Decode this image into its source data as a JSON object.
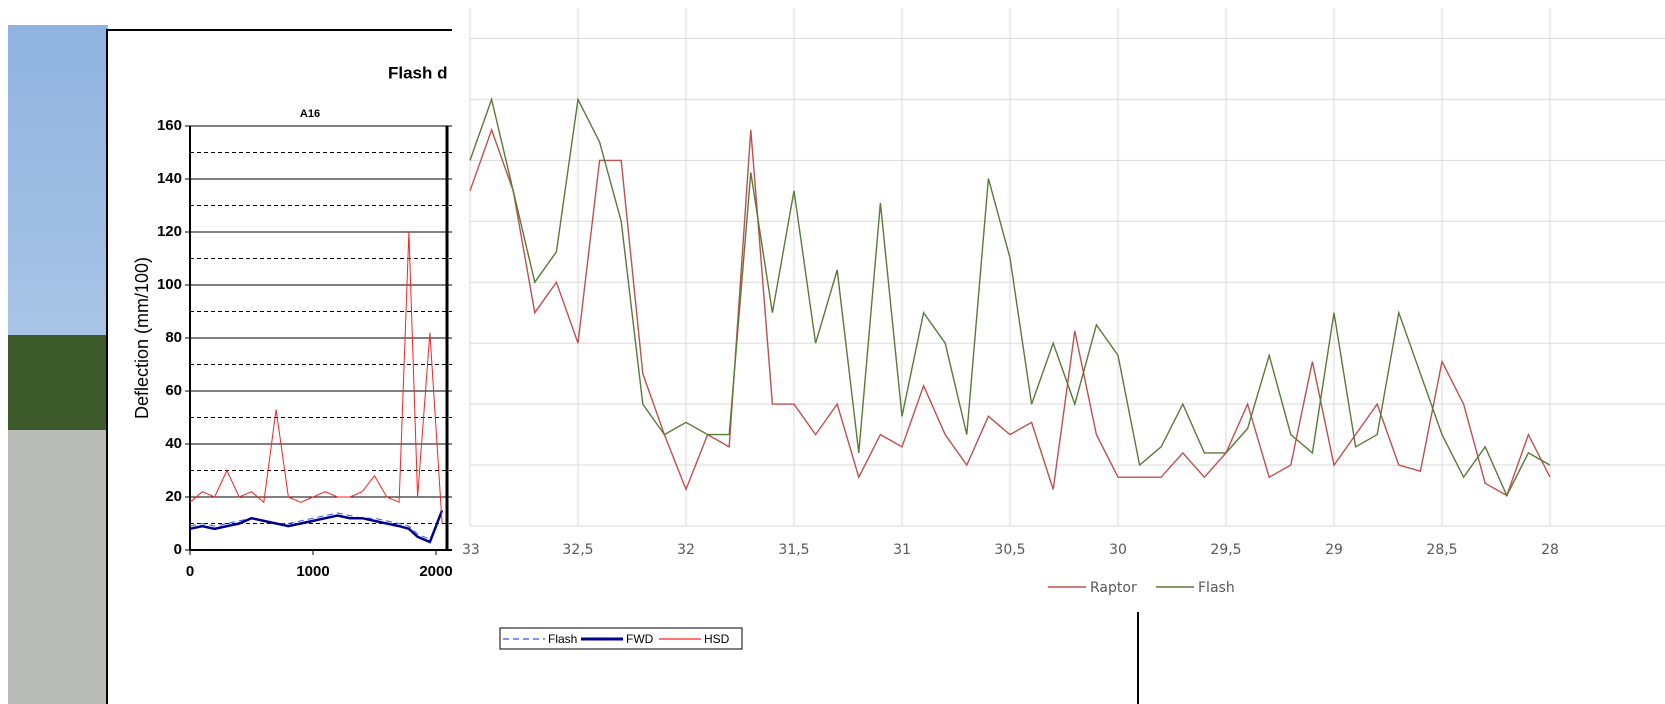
{
  "chart_data": [
    {
      "type": "line",
      "title": "Flash d",
      "subtitle": "A16",
      "y_label": "Deflection (mm/100)",
      "xlim": [
        0,
        3000
      ],
      "xticks": [
        0,
        1000,
        2000
      ],
      "ylim": [
        0,
        160
      ],
      "yticks": [
        0,
        20,
        40,
        60,
        80,
        100,
        120,
        140,
        160
      ],
      "y_minor_grid": [
        10,
        30,
        50,
        70,
        90,
        110,
        130,
        150
      ],
      "x": [
        0,
        100,
        200,
        300,
        400,
        500,
        600,
        700,
        800,
        900,
        1000,
        1100,
        1200,
        1300,
        1400,
        1500,
        1600,
        1700,
        1780,
        1850,
        1950,
        2050
      ],
      "series": [
        {
          "name": "Flash",
          "color": "#3355ff",
          "dash": true,
          "values": [
            9,
            10,
            9,
            10,
            11,
            12,
            11,
            10,
            10,
            11,
            12,
            13,
            14,
            13,
            12,
            12,
            11,
            10,
            9,
            6,
            4,
            14
          ]
        },
        {
          "name": "FWD",
          "color": "#00008b",
          "dash": false,
          "values": [
            8,
            9,
            8,
            9,
            10,
            12,
            11,
            10,
            9,
            10,
            11,
            12,
            13,
            12,
            12,
            11,
            10,
            9,
            8,
            5,
            3,
            15
          ]
        },
        {
          "name": "HSD",
          "color": "#ff2020",
          "dash": false,
          "values": [
            18,
            22,
            20,
            30,
            20,
            22,
            18,
            53,
            20,
            18,
            20,
            22,
            20,
            20,
            22,
            28,
            20,
            18,
            120,
            20,
            82,
            10
          ]
        }
      ]
    },
    {
      "type": "line",
      "xlim": [
        33,
        28
      ],
      "ylim": [
        0,
        8.5
      ],
      "y_grid": [
        1,
        2,
        3,
        4,
        5,
        6,
        7,
        8
      ],
      "xticks": [
        33,
        {
          "value": 32.5,
          "label": "32,5"
        },
        32,
        {
          "value": 31.5,
          "label": "31,5"
        },
        31,
        {
          "value": 30.5,
          "label": "30,5"
        },
        30,
        {
          "value": 29.5,
          "label": "29,5"
        },
        29,
        {
          "value": 28.5,
          "label": "28,5"
        },
        28
      ],
      "x": [
        33,
        32.9,
        32.8,
        32.7,
        32.6,
        32.5,
        32.4,
        32.3,
        32.2,
        32.1,
        32,
        31.9,
        31.8,
        31.7,
        31.6,
        31.5,
        31.4,
        31.3,
        31.2,
        31.1,
        31,
        30.9,
        30.8,
        30.7,
        30.6,
        30.5,
        30.4,
        30.3,
        30.2,
        30.1,
        30,
        29.9,
        29.8,
        29.7,
        29.6,
        29.5,
        29.4,
        29.3,
        29.2,
        29.1,
        29,
        28.9,
        28.8,
        28.7,
        28.6,
        28.5,
        28.4,
        28.3,
        28.2,
        28.1,
        28
      ],
      "series": [
        {
          "name": "Raptor",
          "color": "#c0504d",
          "values": [
            5.5,
            6.5,
            5.5,
            3.5,
            4,
            3,
            6,
            6,
            2.5,
            1.5,
            0.6,
            1.5,
            1.3,
            6.5,
            2,
            2,
            1.5,
            2,
            0.8,
            1.5,
            1.3,
            2.3,
            1.5,
            1,
            1.8,
            1.5,
            1.7,
            0.6,
            3.2,
            1.5,
            0.8,
            0.8,
            0.8,
            1.2,
            0.8,
            1.2,
            2,
            0.8,
            1,
            2.7,
            1,
            1.5,
            2,
            1,
            0.9,
            2.7,
            2,
            0.7,
            0.5,
            1.5,
            0.8
          ]
        },
        {
          "name": "Flash",
          "color": "#5a7a3a",
          "values": [
            6,
            7,
            5.5,
            4,
            4.5,
            7,
            6.3,
            5,
            2,
            1.5,
            1.7,
            1.5,
            1.5,
            5.8,
            3.5,
            5.5,
            3,
            4.2,
            1.2,
            5.3,
            1.8,
            3.5,
            3,
            1.5,
            5.7,
            4.4,
            2,
            3,
            2,
            3.3,
            2.8,
            1,
            1.3,
            2,
            1.2,
            1.2,
            1.6,
            2.8,
            1.5,
            1.2,
            3.5,
            1.3,
            1.5,
            3.5,
            2.5,
            1.5,
            0.8,
            1.3,
            0.5,
            1.2,
            1
          ]
        }
      ]
    }
  ]
}
